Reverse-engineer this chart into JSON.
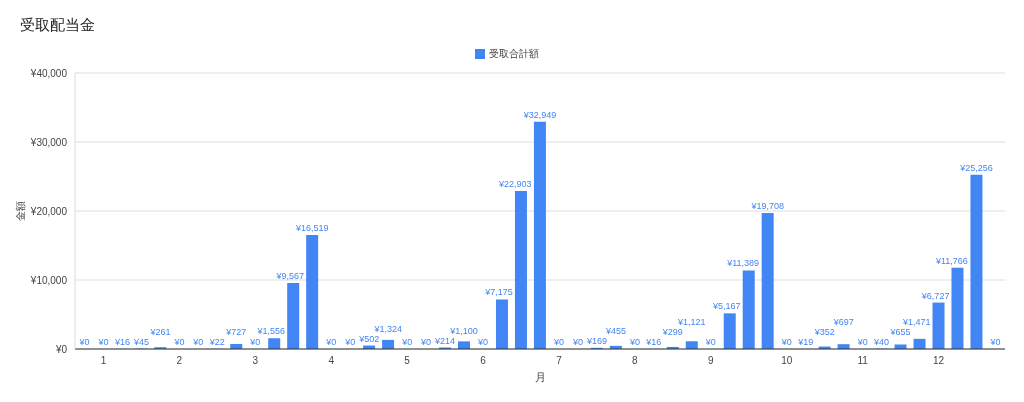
{
  "chart_data": {
    "type": "bar",
    "title": "受取配当金",
    "xlabel": "月",
    "ylabel": "金額",
    "categories": [
      null,
      "1",
      null,
      null,
      null,
      "2",
      null,
      null,
      null,
      "3",
      null,
      null,
      null,
      "4",
      null,
      null,
      null,
      "5",
      null,
      null,
      null,
      "6",
      null,
      null,
      null,
      "7",
      null,
      null,
      null,
      "8",
      null,
      null,
      null,
      "9",
      null,
      null,
      null,
      "10",
      null,
      null,
      null,
      "11",
      null,
      null,
      null,
      "12",
      null,
      null,
      null
    ],
    "series": [
      {
        "name": "受取合計額",
        "color": "#4285f4",
        "values": [
          0,
          0,
          16,
          45,
          261,
          0,
          0,
          22,
          727,
          0,
          1556,
          9567,
          16519,
          0,
          0,
          502,
          1324,
          0,
          0,
          214,
          1100,
          0,
          7175,
          22903,
          32949,
          0,
          0,
          169,
          455,
          0,
          16,
          299,
          1121,
          0,
          5167,
          11389,
          19708,
          0,
          19,
          352,
          697,
          0,
          40,
          655,
          1471,
          6727,
          11766,
          25256,
          0
        ],
        "value_labels": [
          "¥0",
          "¥0",
          "¥16",
          "¥45",
          "¥261",
          "¥0",
          "¥0",
          "¥22",
          "¥727",
          "¥0",
          "¥1,556",
          "¥9,567",
          "¥16,519",
          "¥0",
          "¥0",
          "¥502",
          "¥1,324",
          "¥0",
          "¥0",
          "¥214",
          "¥1,100",
          "¥0",
          "¥7,175",
          "¥22,903",
          "¥32,949",
          "¥0",
          "¥0",
          "¥169",
          "¥455",
          "¥0",
          "¥16",
          "¥299",
          "¥1,121",
          "¥0",
          "¥5,167",
          "¥11,389",
          "¥19,708",
          "¥0",
          "¥19",
          "¥352",
          "¥697",
          "¥0",
          "¥40",
          "¥655",
          "¥1,471",
          "¥6,727",
          "¥11,766",
          "¥25,256",
          "¥0"
        ]
      }
    ],
    "ylim": [
      0,
      40000
    ],
    "yticks": [
      {
        "value": 0,
        "label": "¥0"
      },
      {
        "value": 10000,
        "label": "¥10,000"
      },
      {
        "value": 20000,
        "label": "¥20,000"
      },
      {
        "value": 30000,
        "label": "¥30,000"
      },
      {
        "value": 40000,
        "label": "¥40,000"
      }
    ],
    "grid": "y",
    "legend": "top"
  }
}
